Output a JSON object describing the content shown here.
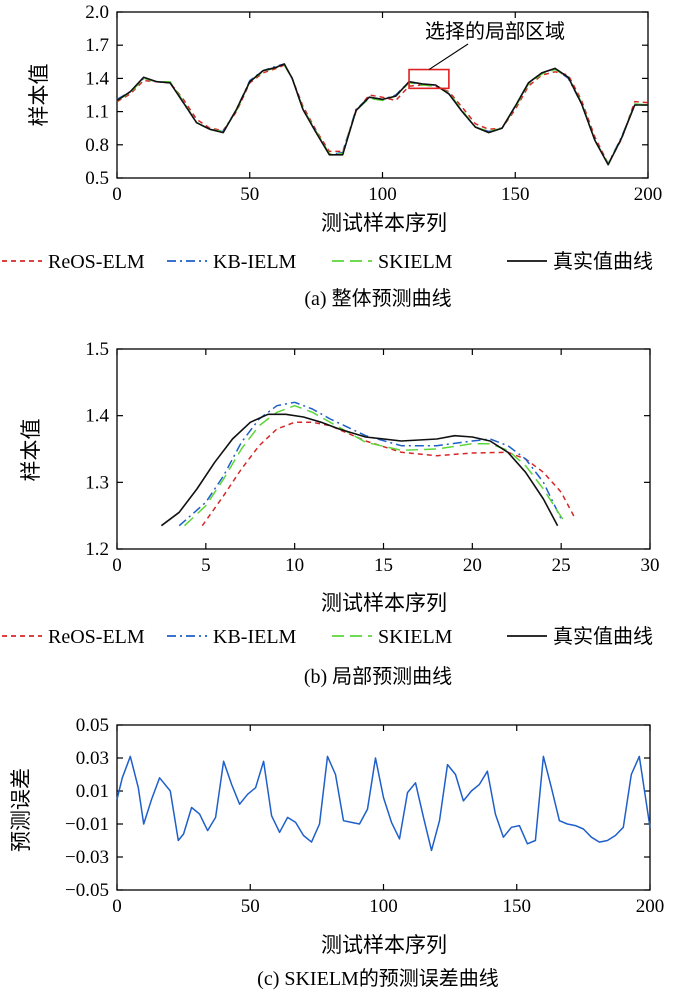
{
  "legend": [
    {
      "name": "ReOS-ELM",
      "color": "#d62728",
      "dash": "5,4"
    },
    {
      "name": "KB-IELM",
      "color": "#1f5fc9",
      "dash": "9,4,2,4"
    },
    {
      "name": "SKIELM",
      "color": "#5cd63a",
      "dash": "12,6"
    },
    {
      "name": "真实值曲线",
      "color": "#111111",
      "dash": ""
    }
  ],
  "chart_data": [
    {
      "type": "line",
      "caption": "(a) 整体预测曲线",
      "xlabel": "测试样本序列",
      "ylabel": "样本值",
      "xlim": [
        0,
        200
      ],
      "ylim": [
        0.5,
        2.0
      ],
      "xticks": [
        0,
        50,
        100,
        150,
        200
      ],
      "xtick_labels": [
        "0",
        "50",
        "100",
        "150",
        "200"
      ],
      "yticks": [
        0.5,
        0.8,
        1.1,
        1.4,
        1.7,
        2.0
      ],
      "ytick_labels": [
        "0.5",
        "0.8",
        "1.1",
        "1.4",
        "1.7",
        "2.0"
      ],
      "annotation": {
        "text": "选择的局部区域",
        "x": [
          110,
          125
        ],
        "y": [
          1.31,
          1.48
        ]
      },
      "x": [
        0,
        5,
        10,
        15,
        20,
        25,
        30,
        35,
        40,
        45,
        50,
        55,
        60,
        63,
        66,
        70,
        75,
        80,
        85,
        90,
        95,
        100,
        105,
        110,
        115,
        120,
        125,
        130,
        135,
        140,
        145,
        150,
        155,
        160,
        165,
        170,
        175,
        180,
        185,
        190,
        195,
        200
      ],
      "series": [
        {
          "name": "ReOS-ELM",
          "values": [
            1.19,
            1.26,
            1.38,
            1.37,
            1.36,
            1.21,
            1.03,
            0.95,
            0.93,
            1.1,
            1.36,
            1.45,
            1.49,
            1.52,
            1.4,
            1.15,
            0.93,
            0.74,
            0.74,
            1.1,
            1.25,
            1.23,
            1.2,
            1.33,
            1.34,
            1.33,
            1.28,
            1.14,
            0.99,
            0.94,
            0.95,
            1.12,
            1.33,
            1.43,
            1.46,
            1.43,
            1.2,
            0.87,
            0.63,
            0.85,
            1.19,
            1.18
          ]
        },
        {
          "name": "KB-IELM",
          "values": [
            1.21,
            1.28,
            1.4,
            1.37,
            1.36,
            1.18,
            1.0,
            0.94,
            0.92,
            1.12,
            1.38,
            1.47,
            1.51,
            1.53,
            1.4,
            1.12,
            0.92,
            0.71,
            0.73,
            1.12,
            1.23,
            1.21,
            1.25,
            1.37,
            1.34,
            1.34,
            1.26,
            1.1,
            0.96,
            0.92,
            0.95,
            1.15,
            1.36,
            1.45,
            1.49,
            1.4,
            1.17,
            0.84,
            0.63,
            0.87,
            1.16,
            1.16
          ]
        },
        {
          "name": "SKIELM",
          "values": [
            1.2,
            1.27,
            1.4,
            1.37,
            1.37,
            1.19,
            1.0,
            0.94,
            0.92,
            1.11,
            1.37,
            1.46,
            1.5,
            1.52,
            1.4,
            1.13,
            0.92,
            0.72,
            0.72,
            1.11,
            1.22,
            1.2,
            1.24,
            1.36,
            1.34,
            1.33,
            1.27,
            1.11,
            0.96,
            0.92,
            0.95,
            1.14,
            1.35,
            1.44,
            1.48,
            1.41,
            1.18,
            0.84,
            0.63,
            0.86,
            1.17,
            1.16
          ]
        },
        {
          "name": "真实值曲线",
          "values": [
            1.2,
            1.28,
            1.41,
            1.37,
            1.36,
            1.18,
            1.0,
            0.94,
            0.91,
            1.12,
            1.37,
            1.47,
            1.5,
            1.53,
            1.4,
            1.12,
            0.91,
            0.71,
            0.71,
            1.11,
            1.23,
            1.21,
            1.24,
            1.37,
            1.35,
            1.34,
            1.26,
            1.1,
            0.96,
            0.91,
            0.95,
            1.15,
            1.36,
            1.45,
            1.49,
            1.41,
            1.17,
            0.84,
            0.62,
            0.86,
            1.16,
            1.16
          ]
        }
      ]
    },
    {
      "type": "line",
      "caption": "(b) 局部预测曲线",
      "xlabel": "测试样本序列",
      "ylabel": "样本值",
      "xlim": [
        0,
        30
      ],
      "ylim": [
        1.2,
        1.5
      ],
      "xticks": [
        0,
        5,
        10,
        15,
        20,
        25,
        30
      ],
      "xtick_labels": [
        "0",
        "5",
        "10",
        "15",
        "20",
        "25",
        "30"
      ],
      "yticks": [
        1.2,
        1.3,
        1.4,
        1.5
      ],
      "ytick_labels": [
        "1.2",
        "1.3",
        "1.4",
        "1.5"
      ],
      "series": [
        {
          "name": "ReOS-ELM",
          "x": [
            4.8,
            6,
            7,
            8,
            9,
            10,
            11,
            12,
            14,
            16,
            18,
            20,
            22,
            23,
            24,
            25,
            25.8
          ],
          "values": [
            1.235,
            1.28,
            1.32,
            1.355,
            1.38,
            1.39,
            1.39,
            1.385,
            1.362,
            1.345,
            1.34,
            1.344,
            1.345,
            1.335,
            1.315,
            1.285,
            1.245
          ]
        },
        {
          "name": "KB-IELM",
          "x": [
            3.5,
            5,
            6,
            7,
            8,
            9,
            10,
            11,
            12,
            14,
            16,
            18,
            20,
            21,
            22,
            23,
            24,
            25
          ],
          "values": [
            1.235,
            1.27,
            1.31,
            1.36,
            1.395,
            1.415,
            1.42,
            1.41,
            1.395,
            1.37,
            1.355,
            1.355,
            1.362,
            1.365,
            1.355,
            1.335,
            1.3,
            1.245
          ]
        },
        {
          "name": "SKIELM",
          "x": [
            3.8,
            5,
            6,
            7,
            8,
            9,
            10,
            11,
            12,
            14,
            16,
            18,
            20,
            21,
            22,
            23,
            24,
            25.2
          ],
          "values": [
            1.235,
            1.265,
            1.305,
            1.35,
            1.385,
            1.405,
            1.415,
            1.405,
            1.39,
            1.36,
            1.348,
            1.35,
            1.358,
            1.358,
            1.348,
            1.325,
            1.29,
            1.24
          ]
        },
        {
          "name": "真实值曲线",
          "x": [
            2.5,
            3.5,
            4.5,
            5.5,
            6.5,
            7.5,
            8.5,
            9.5,
            10.5,
            11.5,
            12.5,
            14,
            16,
            18,
            19,
            20,
            21,
            22,
            23,
            24,
            24.8
          ],
          "values": [
            1.235,
            1.255,
            1.29,
            1.33,
            1.365,
            1.39,
            1.402,
            1.402,
            1.398,
            1.39,
            1.38,
            1.368,
            1.362,
            1.365,
            1.37,
            1.368,
            1.362,
            1.345,
            1.315,
            1.275,
            1.235
          ]
        }
      ]
    },
    {
      "type": "line",
      "caption": "(c) SKIELM的预测误差曲线",
      "xlabel": "测试样本序列",
      "ylabel": "预测误差",
      "xlim": [
        0,
        200
      ],
      "ylim": [
        -0.05,
        0.05
      ],
      "xticks": [
        0,
        50,
        100,
        150,
        200
      ],
      "xtick_labels": [
        "0",
        "50",
        "100",
        "150",
        "200"
      ],
      "yticks": [
        -0.05,
        -0.03,
        -0.01,
        0.01,
        0.03,
        0.05
      ],
      "ytick_labels": [
        "−0.05",
        "−0.03",
        "−0.01",
        "0.01",
        "0.03",
        "0.05"
      ],
      "series": [
        {
          "name": "SKIELM",
          "x": [
            0,
            2,
            5,
            8,
            10,
            13,
            16,
            20,
            23,
            25,
            28,
            31,
            34,
            37,
            40,
            43,
            46,
            49,
            52,
            55,
            58,
            61,
            64,
            67,
            70,
            73,
            76,
            79,
            82,
            85,
            88,
            91,
            94,
            97,
            100,
            103,
            106,
            109,
            112,
            115,
            118,
            121,
            124,
            127,
            130,
            133,
            136,
            139,
            142,
            145,
            148,
            151,
            154,
            157,
            160,
            163,
            166,
            169,
            172,
            175,
            178,
            181,
            184,
            187,
            190,
            193,
            196,
            200
          ],
          "values": [
            0.005,
            0.018,
            0.031,
            0.012,
            -0.01,
            0.005,
            0.018,
            0.01,
            -0.02,
            -0.016,
            0.0,
            -0.004,
            -0.014,
            -0.006,
            0.028,
            0.014,
            0.002,
            0.008,
            0.012,
            0.028,
            -0.005,
            -0.015,
            -0.006,
            -0.009,
            -0.017,
            -0.021,
            -0.01,
            0.031,
            0.02,
            -0.008,
            -0.009,
            -0.01,
            -0.001,
            0.03,
            0.006,
            -0.009,
            -0.019,
            0.009,
            0.015,
            -0.006,
            -0.026,
            -0.008,
            0.026,
            0.02,
            0.004,
            0.01,
            0.014,
            0.022,
            -0.004,
            -0.018,
            -0.012,
            -0.011,
            -0.022,
            -0.02,
            0.031,
            0.012,
            -0.008,
            -0.01,
            -0.011,
            -0.013,
            -0.018,
            -0.021,
            -0.02,
            -0.017,
            -0.012,
            0.02,
            0.031,
            -0.012
          ]
        }
      ]
    }
  ]
}
